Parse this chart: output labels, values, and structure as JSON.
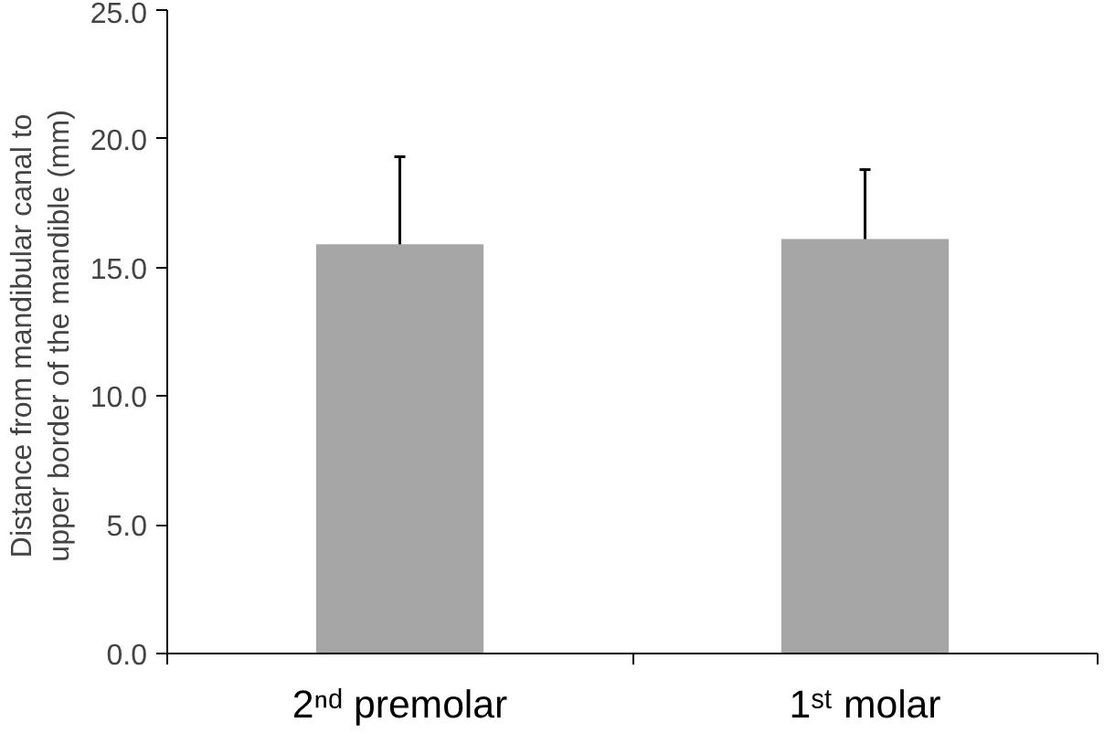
{
  "chart_data": {
    "type": "bar",
    "ylabel": "Distance from mandibular  canal to\nupper border of the mandible  (mm)",
    "categories": [
      "2ⁿᵈ premolar",
      "1ˢᵗ molar"
    ],
    "values": [
      15.9,
      16.1
    ],
    "errors": [
      3.4,
      2.7
    ],
    "color": "#a6a6a6",
    "ylim": [
      0,
      25
    ],
    "yticks": [
      {
        "value": 0,
        "label": "0.0"
      },
      {
        "value": 5,
        "label": "5.0"
      },
      {
        "value": 10,
        "label": "10.0"
      },
      {
        "value": 15,
        "label": "15.0"
      },
      {
        "value": 20,
        "label": "20.0"
      },
      {
        "value": 25,
        "label": "25.0"
      }
    ],
    "grid": false
  }
}
